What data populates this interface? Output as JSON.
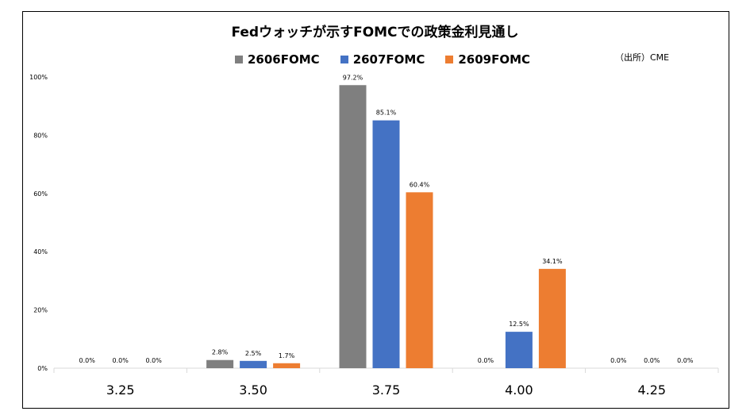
{
  "chart_data": {
    "type": "bar",
    "title": "Fedウォッチが示すFOMCでの政策金利見通し",
    "source_note": "（出所）CME",
    "categories": [
      "3.25",
      "3.50",
      "3.75",
      "4.00",
      "4.25"
    ],
    "yticks": [
      "0%",
      "20%",
      "40%",
      "60%",
      "80%",
      "100%"
    ],
    "ylim": [
      0,
      100
    ],
    "legend_position": "top",
    "series": [
      {
        "name": "2606FOMC",
        "color": "#7f7f7f",
        "values": [
          0.0,
          2.8,
          97.2,
          0.0,
          0.0
        ],
        "labels": [
          "0.0%",
          "2.8%",
          "97.2%",
          "",
          "0.0%"
        ]
      },
      {
        "name": "2607FOMC",
        "color": "#4472c4",
        "values": [
          0.0,
          2.5,
          85.1,
          12.5,
          0.0
        ],
        "labels": [
          "0.0%",
          "2.5%",
          "85.1%",
          "12.5%",
          "0.0%"
        ]
      },
      {
        "name": "2609FOMC",
        "color": "#ed7d31",
        "values": [
          0.0,
          1.7,
          60.4,
          34.1,
          0.0
        ],
        "labels": [
          "0.0%",
          "1.7%",
          "60.4%",
          "34.1%",
          "0.0%"
        ]
      }
    ],
    "extra_labels": [
      {
        "category_index": 3,
        "text": "0.0%"
      }
    ]
  }
}
